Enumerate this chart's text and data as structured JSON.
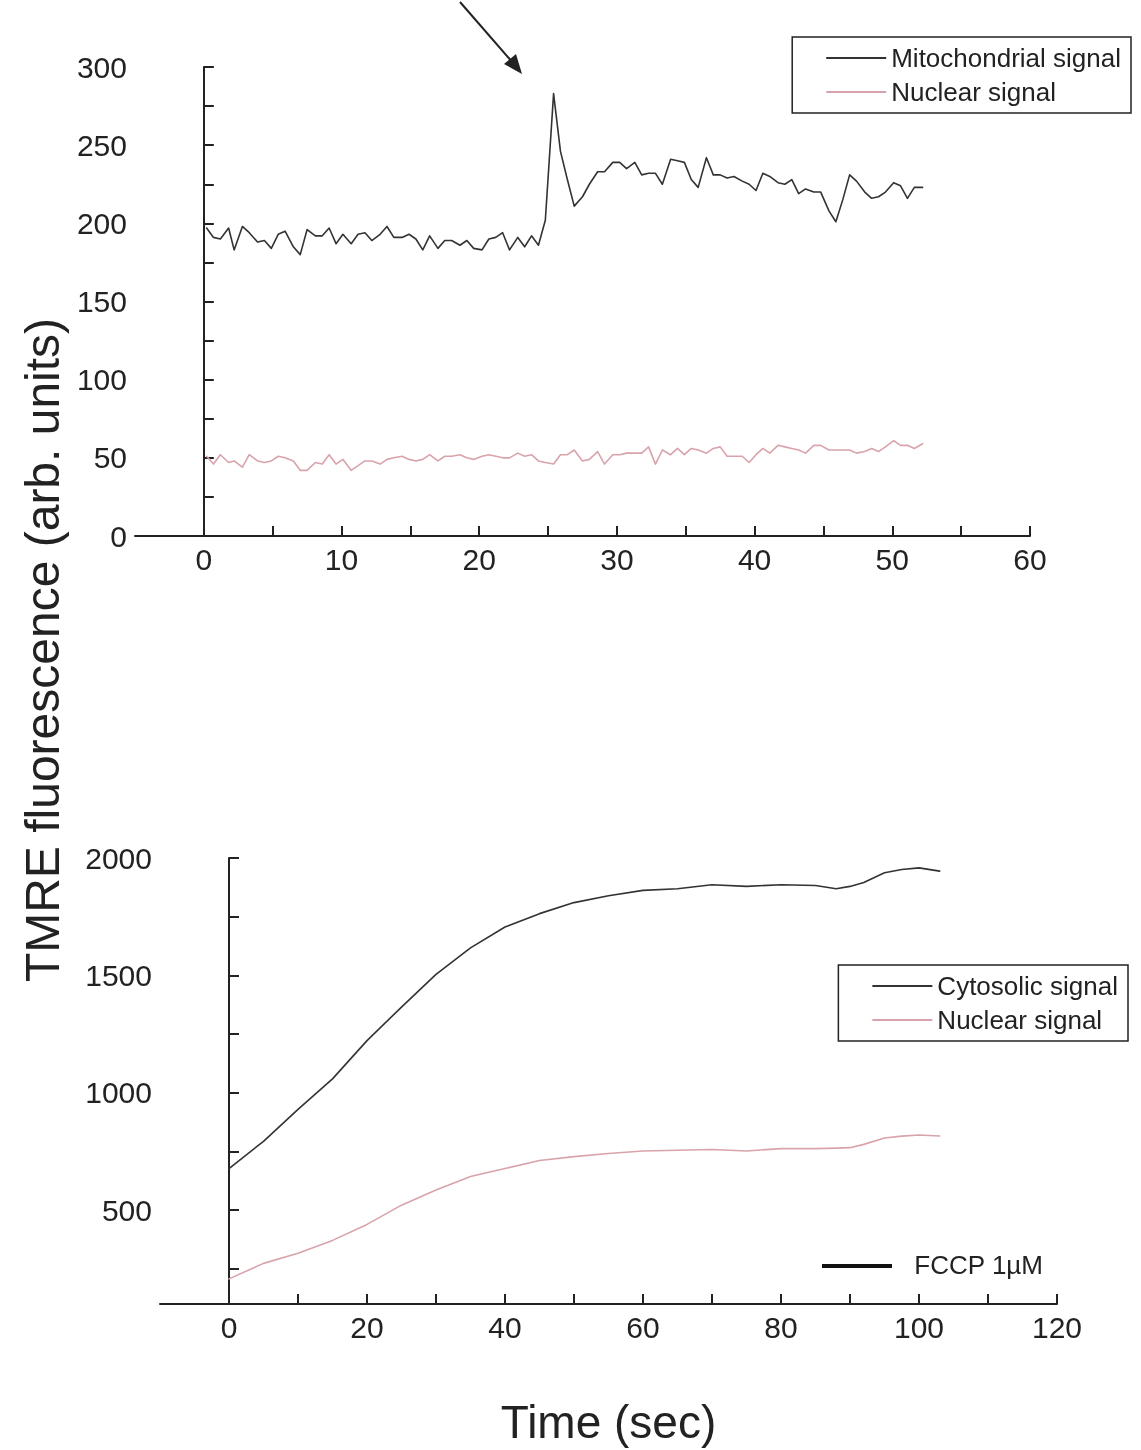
{
  "chart_data": [
    {
      "type": "line",
      "ylabel": "TMRE fluorescence (arb. units)",
      "x": [
        0.2,
        0.7,
        1.2,
        1.8,
        2.2,
        2.8,
        3.3,
        3.9,
        4.4,
        4.9,
        5.4,
        5.9,
        6.5,
        7.0,
        7.5,
        8.1,
        8.6,
        9.1,
        9.6,
        10.1,
        10.7,
        11.2,
        11.7,
        12.2,
        12.8,
        13.3,
        13.8,
        14.4,
        14.9,
        15.4,
        15.9,
        16.4,
        17.0,
        17.5,
        18.0,
        18.6,
        19.1,
        19.6,
        20.2,
        20.7,
        21.2,
        21.7,
        22.2,
        22.8,
        23.3,
        23.8,
        24.3,
        24.8,
        25.4,
        25.9,
        26.4,
        26.9,
        27.5,
        28.0,
        28.6,
        29.1,
        29.7,
        30.2,
        30.7,
        31.3,
        31.8,
        32.3,
        32.8,
        33.3,
        33.9,
        34.4,
        34.9,
        35.4,
        35.9,
        36.5,
        37.0,
        37.5,
        38.0,
        38.5,
        39.1,
        39.6,
        40.1,
        40.6,
        41.1,
        41.7,
        42.2,
        42.7,
        43.2,
        43.7,
        44.3,
        44.8,
        45.4,
        45.9,
        46.4,
        46.9,
        47.4,
        48.0,
        48.5,
        49.0,
        49.5,
        50.1,
        50.6,
        51.1,
        51.6,
        52.2
      ],
      "series": [
        {
          "name": "Mitochondrial signal",
          "color": "#333333",
          "values": [
            197,
            191,
            190,
            197,
            183,
            198,
            194,
            188,
            189,
            184,
            193,
            195,
            185,
            180,
            196,
            192,
            192,
            197,
            187,
            193,
            187,
            193,
            194,
            189,
            193,
            198,
            191,
            191,
            193,
            190,
            183,
            192,
            184,
            189,
            189,
            186,
            189,
            184,
            183,
            190,
            191,
            194,
            183,
            191,
            185,
            192,
            186,
            202,
            283,
            246,
            228,
            211,
            217,
            225,
            233,
            233,
            239,
            239,
            235,
            239,
            231,
            232,
            232,
            225,
            241,
            240,
            239,
            228,
            223,
            242,
            231,
            231,
            229,
            230,
            227,
            225,
            221,
            232,
            230,
            226,
            225,
            228,
            219,
            222,
            220,
            220,
            208,
            201,
            215,
            231,
            227,
            220,
            216,
            217,
            220,
            226,
            224,
            216,
            223,
            223
          ]
        },
        {
          "name": "Nuclear signal",
          "color": "#d9a3ab",
          "values": [
            51,
            46,
            52,
            47,
            48,
            44,
            52,
            48,
            47,
            48,
            51,
            50,
            48,
            42,
            42,
            47,
            46,
            52,
            46,
            49,
            42,
            45,
            48,
            48,
            46,
            49,
            50,
            51,
            49,
            48,
            49,
            52,
            48,
            51,
            51,
            52,
            50,
            49,
            51,
            52,
            51,
            50,
            50,
            53,
            51,
            52,
            48,
            47,
            46,
            52,
            52,
            55,
            48,
            49,
            54,
            46,
            52,
            52,
            53,
            53,
            53,
            57,
            46,
            55,
            52,
            56,
            52,
            56,
            55,
            53,
            56,
            57,
            51,
            51,
            51,
            47,
            52,
            56,
            53,
            58,
            57,
            56,
            55,
            53,
            58,
            58,
            55,
            55,
            55,
            55,
            53,
            54,
            56,
            54,
            57,
            61,
            58,
            58,
            56,
            59
          ]
        }
      ],
      "xlim": [
        -5,
        60
      ],
      "xticks": [
        0,
        {
          "value": 5,
          "label": null
        },
        10,
        {
          "value": 15,
          "label": null
        },
        20,
        {
          "value": 25,
          "label": null
        },
        30,
        {
          "value": 35,
          "label": null
        },
        40,
        {
          "value": 45,
          "label": null
        },
        50,
        {
          "value": 55,
          "label": null
        },
        60
      ],
      "ylim": [
        0,
        300
      ],
      "yticks": [
        0,
        {
          "value": 25,
          "label": null
        },
        50,
        {
          "value": 75,
          "label": null
        },
        100,
        {
          "value": 125,
          "label": null
        },
        150,
        {
          "value": 175,
          "label": null
        },
        200,
        {
          "value": 225,
          "label": null
        },
        250,
        {
          "value": 275,
          "label": null
        },
        300
      ],
      "legend": "top right",
      "marker": "none",
      "line_style": "solid"
    },
    {
      "type": "line",
      "xlabel": "Time (sec)",
      "annotations": [
        "FCCP 1µM"
      ],
      "x": [
        0,
        5,
        10,
        15,
        20,
        25,
        30,
        35,
        40,
        45,
        50,
        55,
        60,
        65,
        70,
        75,
        80,
        85,
        88,
        90,
        92,
        95,
        97.5,
        100,
        103
      ],
      "series": [
        {
          "name": "Cytosolic signal",
          "color": "#333333",
          "values": [
            677,
            793,
            929,
            1059,
            1222,
            1365,
            1504,
            1617,
            1706,
            1763,
            1810,
            1839,
            1862,
            1869,
            1886,
            1879,
            1886,
            1883,
            1869,
            1879,
            1896,
            1937,
            1951,
            1958,
            1944
          ]
        },
        {
          "name": "Nuclear signal",
          "color": "#d9a3ab",
          "values": [
            207,
            273,
            316,
            371,
            439,
            521,
            586,
            643,
            677,
            711,
            728,
            741,
            752,
            755,
            758,
            752,
            762,
            762,
            764,
            766,
            780,
            807,
            815,
            820,
            816
          ]
        }
      ],
      "xlim": [
        -10,
        120
      ],
      "xticks": [
        0,
        {
          "value": 10,
          "label": null
        },
        20,
        {
          "value": 30,
          "label": null
        },
        40,
        {
          "value": 50,
          "label": null
        },
        60,
        {
          "value": 70,
          "label": null
        },
        80,
        {
          "value": 90,
          "label": null
        },
        100,
        {
          "value": 110,
          "label": null
        },
        120
      ],
      "ylim": [
        100,
        2000
      ],
      "yticks": [
        {
          "value": 250,
          "label": null
        },
        500,
        {
          "value": 750,
          "label": null
        },
        1000,
        {
          "value": 1250,
          "label": null
        },
        1500,
        {
          "value": 1750,
          "label": null
        },
        2000
      ],
      "legend": "right",
      "marker": "none",
      "line_style": "solid"
    }
  ]
}
